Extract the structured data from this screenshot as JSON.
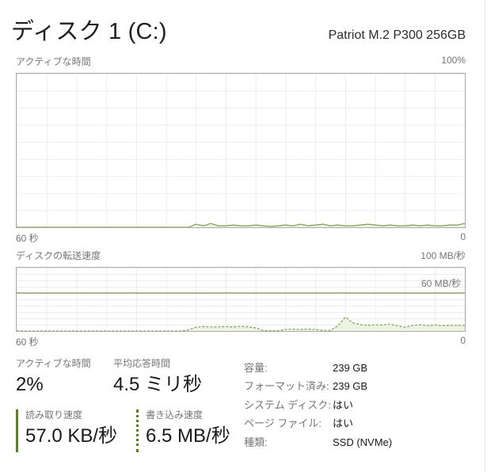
{
  "header": {
    "title": "ディスク 1 (C:)",
    "subtitle": "Patriot M.2 P300 256GB"
  },
  "sections": {
    "active_chart": {
      "title": "アクティブな時間",
      "scale": "100%",
      "x_left": "60 秒",
      "x_right": "0"
    },
    "transfer_chart": {
      "title": "ディスクの転送速度",
      "scale": "100 MB/秒",
      "x_left": "60 秒",
      "x_right": "0"
    }
  },
  "stats": {
    "active_time": {
      "label": "アクティブな時間",
      "value": "2%"
    },
    "avg_response": {
      "label": "平均応答時間",
      "value": "4.5 ミリ秒"
    },
    "read_speed": {
      "label": "読み取り速度",
      "value": "57.0 KB/秒"
    },
    "write_speed": {
      "label": "書き込み速度",
      "value": "6.5 MB/秒"
    },
    "details": [
      {
        "label": "容量:",
        "value": "239 GB"
      },
      {
        "label": "フォーマット済み:",
        "value": "239 GB"
      },
      {
        "label": "システム ディスク:",
        "value": "はい"
      },
      {
        "label": "ページ ファイル:",
        "value": "はい"
      },
      {
        "label": "種類:",
        "value": "SSD (NVMe)"
      }
    ]
  },
  "colors": {
    "series_line": "#7d9e4d",
    "series_fill": "#edf3e2",
    "reference_line": "#567c2e",
    "grid": "#ececec",
    "chart_border": "#ababab",
    "label_gray": "#757575",
    "text_dark": "#191919"
  },
  "chart_data": [
    {
      "type": "area",
      "title": "アクティブな時間",
      "unit": "%",
      "ylim": [
        0,
        100
      ],
      "xlim_seconds": [
        60,
        0
      ],
      "x_left_label": "60 秒",
      "x_right_label": "0",
      "line_style": "solid",
      "grid": true,
      "values": [
        0,
        0,
        0,
        0,
        0,
        0,
        0,
        0,
        0,
        0,
        0,
        0,
        0,
        0,
        0,
        0,
        0,
        0,
        0,
        0,
        0,
        0,
        0,
        0,
        2,
        1,
        2.5,
        1,
        1,
        1.5,
        1,
        1,
        1.5,
        1,
        0.5,
        1,
        1.5,
        1,
        2,
        1,
        1.5,
        2,
        1,
        1.5,
        1,
        1,
        1.5,
        2,
        1.5,
        1,
        1.5,
        1,
        1,
        1.5,
        1,
        1.5,
        1,
        1,
        1.5,
        1.5,
        2.5
      ]
    },
    {
      "type": "line",
      "title": "ディスクの転送速度",
      "unit": "MB/秒",
      "ylim": [
        0,
        100
      ],
      "xlim_seconds": [
        60,
        0
      ],
      "x_left_label": "60 秒",
      "x_right_label": "0",
      "line_style": "dashed",
      "grid": true,
      "reference_value": 60,
      "reference_label": "60 MB/秒",
      "values": [
        0,
        0,
        0,
        0,
        0,
        0,
        0,
        0,
        0,
        0,
        0,
        0,
        0,
        0,
        0,
        0,
        0,
        0,
        0,
        0,
        0,
        0,
        0,
        2,
        6,
        7,
        6.5,
        6.5,
        7,
        6.5,
        7.5,
        6.5,
        5,
        1,
        0.5,
        0.5,
        2.5,
        3,
        2.5,
        3,
        2.5,
        1,
        1,
        8,
        22,
        13,
        10,
        9,
        10,
        9.5,
        11,
        8,
        6,
        9,
        10,
        8.5,
        9.5,
        8.5,
        9,
        9,
        9
      ]
    }
  ]
}
